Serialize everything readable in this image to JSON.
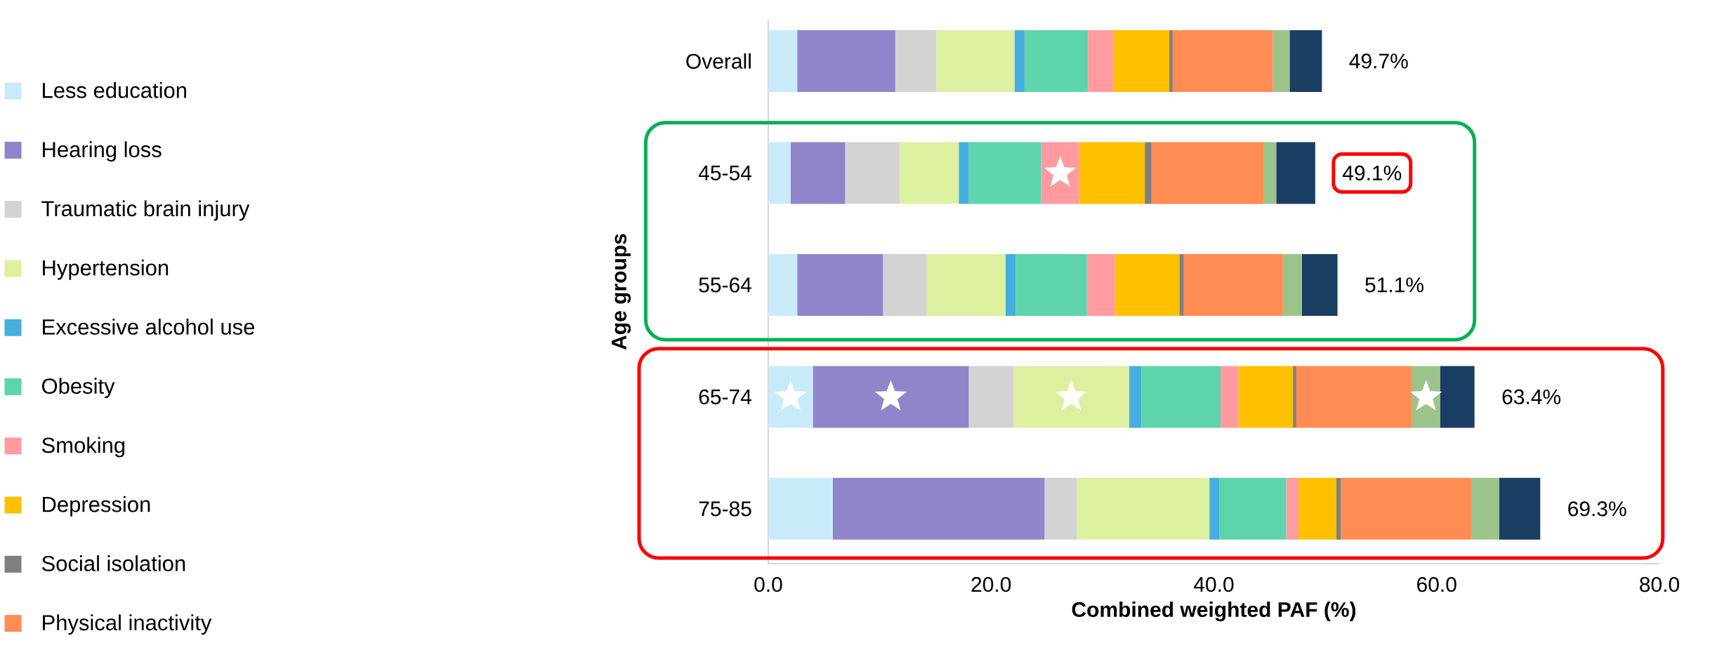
{
  "chart_data": {
    "type": "bar",
    "orientation": "horizontal",
    "stacked": true,
    "xlabel": "Combined weighted PAF (%)",
    "ylabel": "Age groups",
    "categories": [
      "Overall",
      "45-54",
      "55-64",
      "65-74",
      "75-85"
    ],
    "series": [
      {
        "name": "Less education",
        "color": "#c9ebf9",
        "values": [
          2.6,
          2.0,
          2.6,
          4.0,
          5.8
        ]
      },
      {
        "name": "Hearing loss",
        "color": "#9085cb",
        "values": [
          8.8,
          4.9,
          7.7,
          14.0,
          19.0
        ]
      },
      {
        "name": "Traumatic brain injury",
        "color": "#d3d3d3",
        "values": [
          3.7,
          4.9,
          3.9,
          4.0,
          2.9
        ]
      },
      {
        "name": "Hypertension",
        "color": "#dcf0a0",
        "values": [
          7.0,
          5.3,
          7.1,
          10.4,
          11.9
        ]
      },
      {
        "name": "Excessive alcohol use",
        "color": "#45aedf",
        "values": [
          0.9,
          0.9,
          0.9,
          1.1,
          0.9
        ]
      },
      {
        "name": "Obesity",
        "color": "#5dd4aa",
        "values": [
          5.7,
          6.5,
          6.4,
          7.1,
          6.0
        ]
      },
      {
        "name": "Smoking",
        "color": "#ff9ba0",
        "values": [
          2.3,
          3.4,
          2.5,
          1.6,
          1.1
        ]
      },
      {
        "name": "Depression",
        "color": "#ffc000",
        "values": [
          5.0,
          5.9,
          5.8,
          4.9,
          3.4
        ]
      },
      {
        "name": "Social isolation",
        "color": "#7f7f7f",
        "values": [
          0.3,
          0.6,
          0.4,
          0.3,
          0.4
        ]
      },
      {
        "name": "Physical inactivity",
        "color": "#ff8c52",
        "values": [
          9.0,
          10.1,
          8.9,
          10.4,
          11.7
        ]
      },
      {
        "color": "#9bc48a",
        "values": [
          1.5,
          1.1,
          1.7,
          2.5,
          2.5
        ]
      },
      {
        "color": "#1a3d63",
        "values": [
          2.9,
          3.5,
          3.2,
          3.1,
          3.7
        ]
      }
    ],
    "totals": [
      "49.7%",
      "49.1%",
      "51.1%",
      "63.4%",
      "69.3%"
    ],
    "xlim": [
      0,
      80
    ],
    "xticks": [
      {
        "value": 0,
        "label": "0.0"
      },
      {
        "value": 20,
        "label": "20.0"
      },
      {
        "value": 40,
        "label": "40.0"
      },
      {
        "value": 60,
        "label": "60.0"
      },
      {
        "value": 80,
        "label": "80.0"
      }
    ],
    "legend": "left"
  }
}
